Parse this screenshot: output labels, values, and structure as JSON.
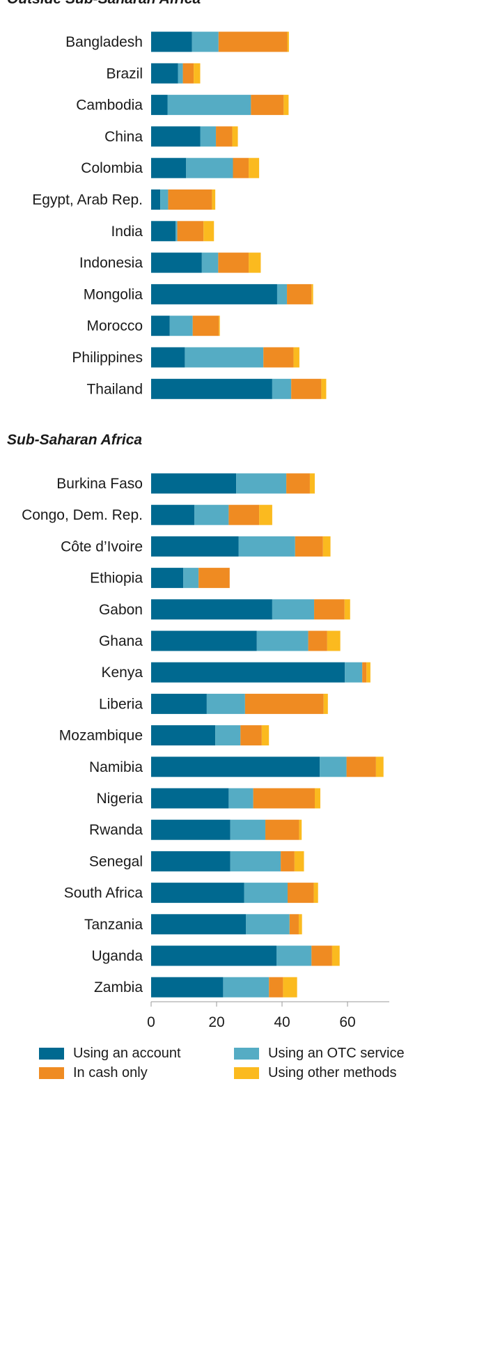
{
  "chart_data": {
    "type": "bar",
    "orientation": "horizontal",
    "stacked": true,
    "xlim": [
      0,
      70
    ],
    "xticks": [
      0,
      20,
      40,
      60
    ],
    "grid": false,
    "legend_position": "bottom",
    "series": [
      {
        "name": "Using an account",
        "color": "#006990"
      },
      {
        "name": "Using an OTC service",
        "color": "#55acc4"
      },
      {
        "name": "In cash only",
        "color": "#ef8b22"
      },
      {
        "name": "Using other methods",
        "color": "#fbba1f"
      }
    ],
    "groups": [
      {
        "title": "Outside Sub-Saharan Africa",
        "categories": [
          "Bangladesh",
          "Brazil",
          "Cambodia",
          "China",
          "Colombia",
          "Egypt, Arab Rep.",
          "India",
          "Indonesia",
          "Mongolia",
          "Morocco",
          "Philippines",
          "Thailand"
        ],
        "values": [
          [
            12.5,
            8.1,
            21.0,
            0.5
          ],
          [
            8.2,
            1.5,
            3.3,
            2.0
          ],
          [
            5.0,
            25.5,
            10.0,
            1.5
          ],
          [
            15.0,
            4.8,
            5.0,
            1.7
          ],
          [
            10.7,
            14.3,
            4.8,
            3.2
          ],
          [
            2.8,
            2.4,
            13.4,
            1.0
          ],
          [
            7.5,
            0.5,
            8.0,
            3.2
          ],
          [
            15.5,
            5.0,
            9.3,
            3.7
          ],
          [
            38.5,
            3.0,
            7.5,
            0.5
          ],
          [
            5.7,
            7.0,
            8.0,
            0.3
          ],
          [
            10.3,
            24.0,
            9.2,
            1.8
          ],
          [
            37.0,
            5.8,
            9.2,
            1.5
          ]
        ]
      },
      {
        "title": "Sub-Saharan Africa",
        "categories": [
          "Burkina Faso",
          "Congo, Dem. Rep.",
          "Côte d’Ivoire",
          "Ethiopia",
          "Gabon",
          "Ghana",
          "Kenya",
          "Liberia",
          "Mozambique",
          "Namibia",
          "Nigeria",
          "Rwanda",
          "Senegal",
          "South Africa",
          "Tanzania",
          "Uganda",
          "Zambia"
        ],
        "values": [
          [
            26.0,
            15.3,
            7.2,
            1.5
          ],
          [
            13.2,
            10.5,
            9.3,
            4.0
          ],
          [
            26.7,
            17.3,
            8.5,
            2.3
          ],
          [
            9.8,
            4.7,
            9.5,
            0.0
          ],
          [
            37.0,
            12.8,
            9.3,
            1.7
          ],
          [
            32.3,
            15.7,
            5.8,
            4.0
          ],
          [
            59.2,
            5.3,
            1.3,
            1.2
          ],
          [
            17.0,
            11.7,
            24.0,
            1.3
          ],
          [
            19.6,
            7.7,
            6.5,
            2.2
          ],
          [
            51.5,
            8.2,
            9.0,
            2.3
          ],
          [
            23.7,
            7.5,
            18.8,
            1.7
          ],
          [
            24.2,
            10.7,
            10.3,
            0.8
          ],
          [
            24.2,
            15.4,
            4.2,
            2.9
          ],
          [
            28.4,
            13.3,
            8.0,
            1.3
          ],
          [
            29.0,
            13.3,
            2.8,
            1.0
          ],
          [
            38.3,
            10.7,
            6.3,
            2.3
          ],
          [
            22.0,
            14.0,
            4.3,
            4.3
          ]
        ]
      }
    ]
  }
}
